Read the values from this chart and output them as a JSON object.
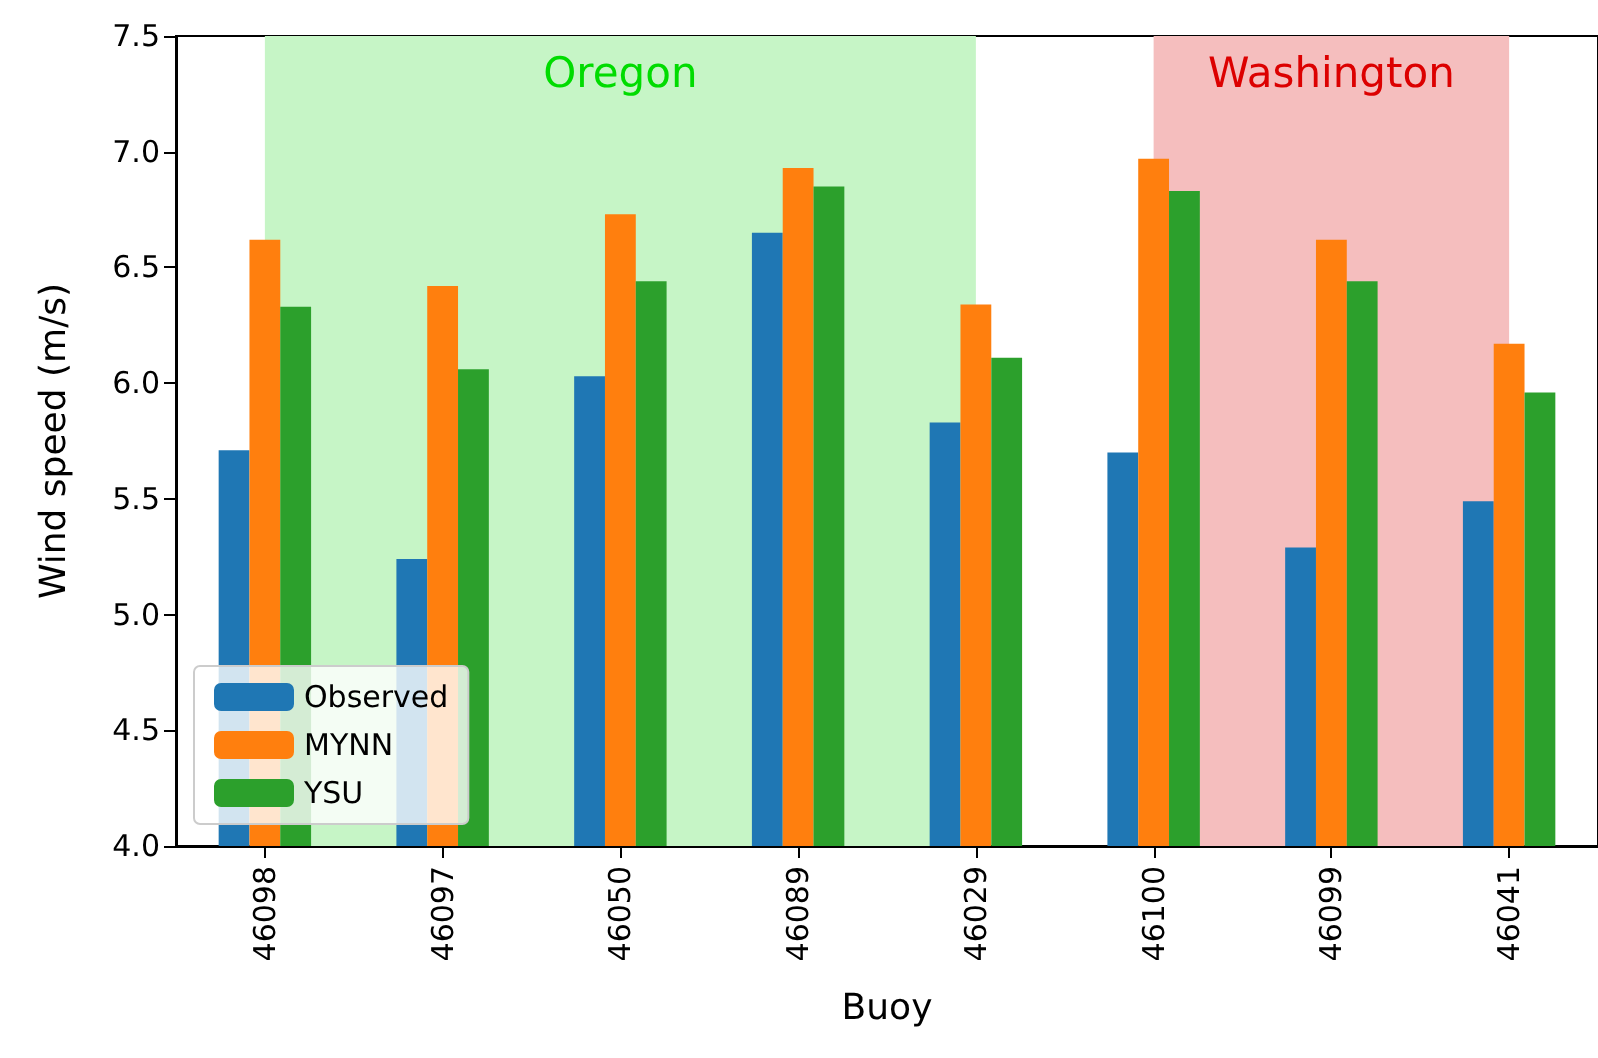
{
  "chart_data": {
    "type": "bar",
    "xlabel": "Buoy",
    "ylabel": "Wind speed (m/s)",
    "categories": [
      "46098",
      "46097",
      "46050",
      "46089",
      "46029",
      "46100",
      "46099",
      "46041"
    ],
    "series": [
      {
        "name": "Observed",
        "color": "#1f77b4",
        "values": [
          5.71,
          5.24,
          6.03,
          6.65,
          5.83,
          5.7,
          5.29,
          5.49
        ]
      },
      {
        "name": "MYNN",
        "color": "#ff7f0e",
        "values": [
          6.62,
          6.42,
          6.73,
          6.93,
          6.34,
          6.97,
          6.62,
          6.17
        ]
      },
      {
        "name": "YSU",
        "color": "#2ca02c",
        "values": [
          6.33,
          6.06,
          6.44,
          6.85,
          6.11,
          6.83,
          6.44,
          5.96
        ]
      }
    ],
    "ylim": [
      4.0,
      7.5
    ],
    "yticks": [
      {
        "value": 4.0,
        "label": "4.0"
      },
      {
        "value": 4.5,
        "label": "4.5"
      },
      {
        "value": 5.0,
        "label": "5.0"
      },
      {
        "value": 5.5,
        "label": "5.5"
      },
      {
        "value": 6.0,
        "label": "6.0"
      },
      {
        "value": 6.5,
        "label": "6.5"
      },
      {
        "value": 7.0,
        "label": "7.0"
      },
      {
        "value": 7.5,
        "label": "7.5"
      }
    ],
    "bands": [
      {
        "axis": "x",
        "from": "46098",
        "to": "46029",
        "label": "Oregon",
        "color": "#c6f5c6"
      },
      {
        "axis": "x",
        "from": "46100",
        "to": "46041",
        "label": "Washington",
        "color": "#f5bebe"
      }
    ],
    "grid": false,
    "legend": "bottom left"
  }
}
